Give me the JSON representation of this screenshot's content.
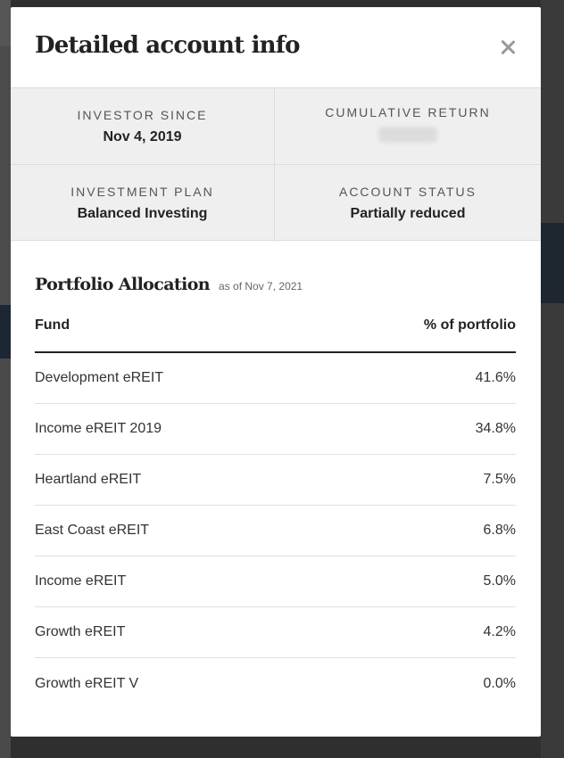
{
  "modal": {
    "title": "Detailed account info",
    "close_icon": "close-icon"
  },
  "account": {
    "investor_since_label": "INVESTOR SINCE",
    "investor_since_value": "Nov 4, 2019",
    "cumulative_return_label": "CUMULATIVE RETURN",
    "investment_plan_label": "INVESTMENT PLAN",
    "investment_plan_value": "Balanced Investing",
    "account_status_label": "ACCOUNT STATUS",
    "account_status_value": "Partially reduced"
  },
  "allocation": {
    "title": "Portfolio Allocation",
    "as_of": "as of Nov 7, 2021",
    "columns": [
      "Fund",
      "% of portfolio"
    ],
    "rows": [
      {
        "fund": "Development eREIT",
        "pct": "41.6%"
      },
      {
        "fund": "Income eREIT 2019",
        "pct": "34.8%"
      },
      {
        "fund": "Heartland eREIT",
        "pct": "7.5%"
      },
      {
        "fund": "East Coast eREIT",
        "pct": "6.8%"
      },
      {
        "fund": "Income eREIT",
        "pct": "5.0%"
      },
      {
        "fund": "Growth eREIT",
        "pct": "4.2%"
      },
      {
        "fund": "Growth eREIT V",
        "pct": "0.0%"
      }
    ]
  }
}
